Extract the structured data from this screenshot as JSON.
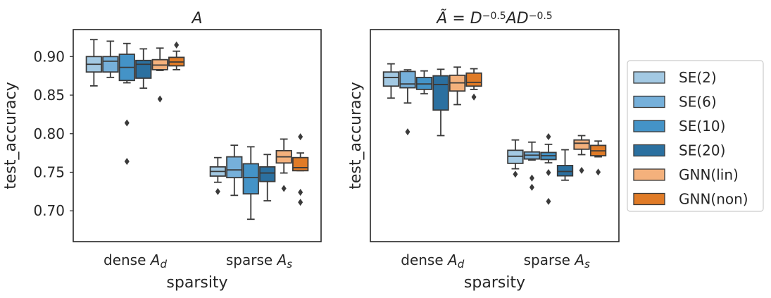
{
  "chart_data": [
    {
      "type": "box",
      "title": "A",
      "xlabel": "sparsity",
      "ylabel": "test_accuracy",
      "categories": [
        "dense A_d",
        "sparse A_s"
      ],
      "ylim": [
        0.66,
        0.935
      ],
      "yticks": [
        0.7,
        0.75,
        0.8,
        0.85,
        0.9
      ],
      "ytick_labels": [
        "0.70",
        "0.75",
        "0.80",
        "0.85",
        "0.90"
      ],
      "show_yticks": true,
      "series": [
        {
          "name": "SE(2)",
          "boxes": [
            {
              "whislo": 0.862,
              "q1": 0.88,
              "med": 0.89,
              "q3": 0.9,
              "whishi": 0.922,
              "fliers": []
            },
            {
              "whislo": 0.737,
              "q1": 0.745,
              "med": 0.751,
              "q3": 0.757,
              "whishi": 0.769,
              "fliers": [
                0.725
              ]
            }
          ]
        },
        {
          "name": "SE(6)",
          "boxes": [
            {
              "whislo": 0.873,
              "q1": 0.88,
              "med": 0.894,
              "q3": 0.9,
              "whishi": 0.92,
              "fliers": []
            },
            {
              "whislo": 0.72,
              "q1": 0.743,
              "med": 0.753,
              "q3": 0.77,
              "whishi": 0.785,
              "fliers": []
            }
          ]
        },
        {
          "name": "SE(10)",
          "boxes": [
            {
              "whislo": 0.866,
              "q1": 0.869,
              "med": 0.886,
              "q3": 0.903,
              "whishi": 0.917,
              "fliers": [
                0.814,
                0.764
              ]
            },
            {
              "whislo": 0.689,
              "q1": 0.722,
              "med": 0.743,
              "q3": 0.761,
              "whishi": 0.783,
              "fliers": []
            }
          ]
        },
        {
          "name": "SE(20)",
          "boxes": [
            {
              "whislo": 0.859,
              "q1": 0.872,
              "med": 0.89,
              "q3": 0.895,
              "whishi": 0.91,
              "fliers": []
            },
            {
              "whislo": 0.713,
              "q1": 0.738,
              "med": 0.749,
              "q3": 0.757,
              "whishi": 0.773,
              "fliers": []
            }
          ]
        },
        {
          "name": "GNN(lin)",
          "boxes": [
            {
              "whislo": 0.882,
              "q1": 0.883,
              "med": 0.889,
              "q3": 0.896,
              "whishi": 0.911,
              "fliers": [
                0.845
              ]
            },
            {
              "whislo": 0.749,
              "q1": 0.762,
              "med": 0.77,
              "q3": 0.778,
              "whishi": 0.793,
              "fliers": [
                0.729
              ]
            }
          ]
        },
        {
          "name": "GNN(non)",
          "boxes": [
            {
              "whislo": 0.883,
              "q1": 0.888,
              "med": 0.893,
              "q3": 0.899,
              "whishi": 0.907,
              "fliers": [
                0.915
              ]
            },
            {
              "whislo": 0.752,
              "q1": 0.752,
              "med": 0.756,
              "q3": 0.769,
              "whishi": 0.775,
              "fliers": [
                0.796,
                0.724,
                0.711
              ]
            }
          ]
        }
      ]
    },
    {
      "type": "box",
      "title": "Ã = D^-0.5 A D^-0.5",
      "xlabel": "sparsity",
      "ylabel": "test_accuracy",
      "categories": [
        "dense A_d",
        "sparse A_s"
      ],
      "ylim": [
        0.6,
        0.99
      ],
      "yticks": [],
      "ytick_labels": [],
      "show_yticks": false,
      "series": [
        {
          "name": "SE(2)",
          "boxes": [
            {
              "whislo": 0.864,
              "q1": 0.886,
              "med": 0.902,
              "q3": 0.912,
              "whishi": 0.927,
              "fliers": []
            },
            {
              "whislo": 0.734,
              "q1": 0.744,
              "med": 0.757,
              "q3": 0.768,
              "whishi": 0.787,
              "fliers": [
                0.724
              ]
            }
          ]
        },
        {
          "name": "SE(6)",
          "boxes": [
            {
              "whislo": 0.855,
              "q1": 0.883,
              "med": 0.89,
              "q3": 0.913,
              "whishi": 0.916,
              "fliers": [
                0.802
              ]
            },
            {
              "whislo": 0.75,
              "q1": 0.752,
              "med": 0.759,
              "q3": 0.765,
              "whishi": 0.783,
              "fliers": [
                0.717,
                0.7
              ]
            }
          ]
        },
        {
          "name": "SE(10)",
          "boxes": [
            {
              "whislo": 0.872,
              "q1": 0.88,
              "med": 0.89,
              "q3": 0.902,
              "whishi": 0.914,
              "fliers": []
            },
            {
              "whislo": 0.745,
              "q1": 0.751,
              "med": 0.758,
              "q3": 0.764,
              "whishi": 0.779,
              "fliers": [
                0.793,
                0.727,
                0.674
              ]
            }
          ]
        },
        {
          "name": "SE(20)",
          "boxes": [
            {
              "whislo": 0.795,
              "q1": 0.842,
              "med": 0.889,
              "q3": 0.905,
              "whishi": 0.917,
              "fliers": []
            },
            {
              "whislo": 0.713,
              "q1": 0.721,
              "med": 0.729,
              "q3": 0.74,
              "whishi": 0.769,
              "fliers": []
            }
          ]
        },
        {
          "name": "GNN(lin)",
          "boxes": [
            {
              "whislo": 0.852,
              "q1": 0.877,
              "med": 0.892,
              "q3": 0.906,
              "whishi": 0.921,
              "fliers": []
            },
            {
              "whislo": 0.76,
              "q1": 0.77,
              "med": 0.781,
              "q3": 0.787,
              "whishi": 0.795,
              "fliers": [
                0.731
              ]
            }
          ]
        },
        {
          "name": "GNN(non)",
          "boxes": [
            {
              "whislo": 0.88,
              "q1": 0.886,
              "med": 0.893,
              "q3": 0.91,
              "whishi": 0.918,
              "fliers": [
                0.866
              ]
            },
            {
              "whislo": 0.756,
              "q1": 0.758,
              "med": 0.767,
              "q3": 0.777,
              "whishi": 0.785,
              "fliers": [
                0.728
              ]
            }
          ]
        }
      ]
    }
  ],
  "legend": {
    "placement": "right",
    "items": [
      {
        "label": "SE(2)",
        "color": "#a3c9e3"
      },
      {
        "label": "SE(6)",
        "color": "#76b0da"
      },
      {
        "label": "SE(10)",
        "color": "#4493c7"
      },
      {
        "label": "SE(20)",
        "color": "#2b70a0"
      },
      {
        "label": "GNN(lin)",
        "color": "#f4b17c"
      },
      {
        "label": "GNN(non)",
        "color": "#e07b27"
      }
    ]
  },
  "colors": {
    "axis": "#262626",
    "line": "#3a3a3a",
    "legend_border": "#cccccc"
  }
}
